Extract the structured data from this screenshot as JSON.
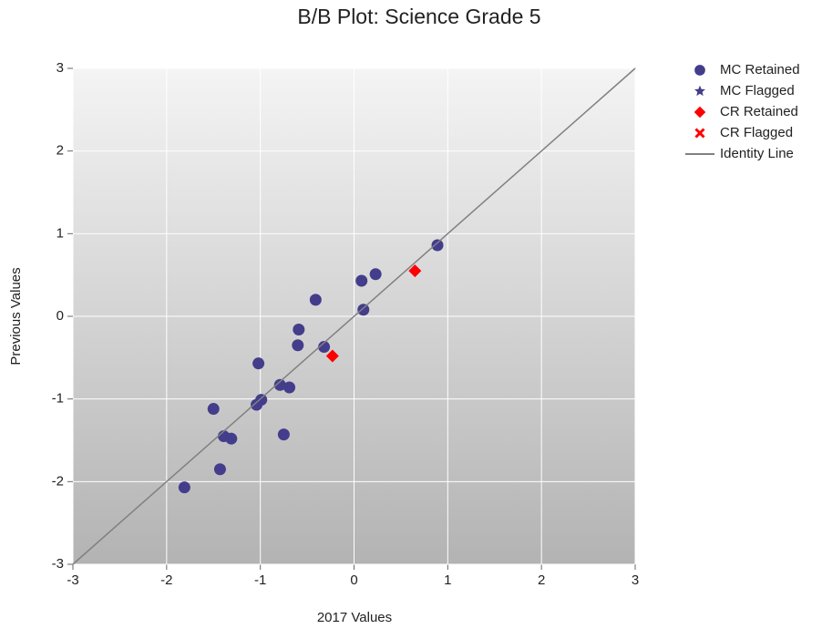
{
  "chart_data": {
    "type": "scatter",
    "title": "B/B Plot: Science Grade 5",
    "xlabel": "2017 Values",
    "ylabel": "Previous Values",
    "xlim": [
      -3,
      3
    ],
    "ylim": [
      -3,
      3
    ],
    "xticks": [
      -3,
      -2,
      -1,
      0,
      1,
      2,
      3
    ],
    "yticks": [
      -3,
      -2,
      -1,
      0,
      1,
      2,
      3
    ],
    "grid": true,
    "legend": "right",
    "series": [
      {
        "name": "MC Retained",
        "color": "#433d8b",
        "marker": "circle",
        "x": [
          0.89,
          0.23,
          0.08,
          0.1,
          -0.41,
          -0.59,
          -0.6,
          -0.32,
          -1.02,
          -0.79,
          -0.69,
          -0.99,
          -1.04,
          -1.5,
          -1.39,
          -1.31,
          -0.75,
          -1.43,
          -1.81
        ],
        "y": [
          0.86,
          0.51,
          0.43,
          0.08,
          0.2,
          -0.16,
          -0.35,
          -0.37,
          -0.57,
          -0.83,
          -0.86,
          -1.01,
          -1.07,
          -1.12,
          -1.45,
          -1.48,
          -1.43,
          -1.85,
          -2.07
        ]
      },
      {
        "name": "MC Flagged",
        "color": "#433d8b",
        "marker": "star",
        "x": [],
        "y": []
      },
      {
        "name": "CR Retained",
        "color": "#ff0000",
        "marker": "diamond",
        "x": [
          0.65,
          -0.23
        ],
        "y": [
          0.55,
          -0.48
        ]
      },
      {
        "name": "CR Flagged",
        "color": "#ff0000",
        "marker": "x",
        "x": [],
        "y": []
      },
      {
        "name": "Identity Line",
        "color": "#808080",
        "marker": "line",
        "x": [
          -3,
          3
        ],
        "y": [
          -3,
          3
        ]
      }
    ]
  }
}
